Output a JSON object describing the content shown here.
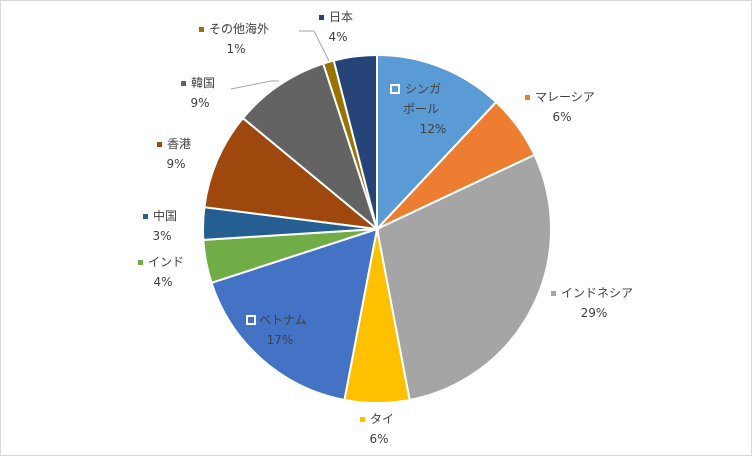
{
  "chart_data": {
    "type": "pie",
    "categories": [
      "シンガポール",
      "マレーシア",
      "インドネシア",
      "タイ",
      "ベトナム",
      "インド",
      "中国",
      "香港",
      "韓国",
      "その他海外",
      "日本"
    ],
    "values": [
      12,
      6,
      29,
      6,
      17,
      4,
      3,
      9,
      9,
      1,
      4
    ],
    "display_labels": [
      "12%",
      "6%",
      "29%",
      "6%",
      "17%",
      "4%",
      "3%",
      "9%",
      "9%",
      "1%",
      "4%"
    ],
    "colors": [
      "#5b9bd5",
      "#ed7d31",
      "#a5a5a5",
      "#ffc000",
      "#4472c4",
      "#70ad47",
      "#255e91",
      "#9e480e",
      "#636363",
      "#997300",
      "#264478"
    ],
    "legend": "none",
    "start_angle_deg": 0,
    "direction": "clockwise"
  }
}
